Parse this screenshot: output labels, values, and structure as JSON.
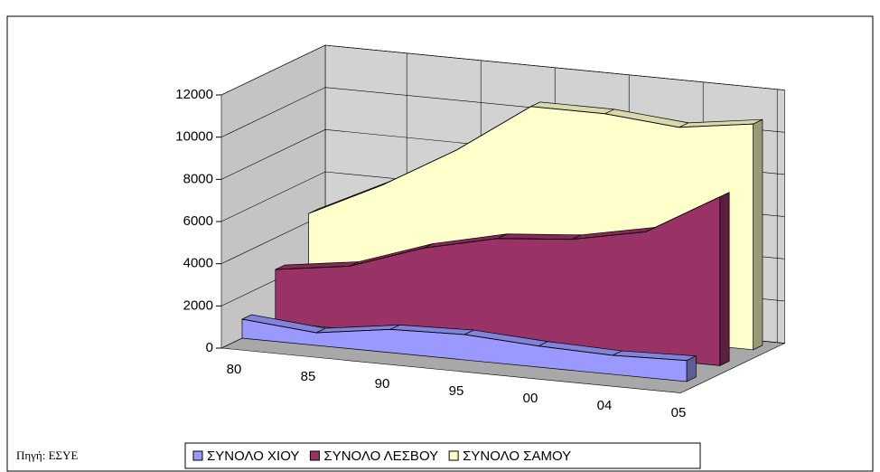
{
  "chart_data": {
    "type": "area3d",
    "categories": [
      "80",
      "85",
      "90",
      "95",
      "00",
      "04",
      "05"
    ],
    "series": [
      {
        "name": "ΣΥΝΟΛΟ ΧΙΟΥ",
        "color": "#9999ff",
        "values": [
          900,
          600,
          1100,
          1200,
          1000,
          900,
          1000
        ]
      },
      {
        "name": "ΣΥΝΟΛΟ ΛΕΣΒΟΥ",
        "color": "#993366",
        "values": [
          2500,
          3000,
          4200,
          5000,
          5300,
          6000,
          8000
        ]
      },
      {
        "name": "ΣΥΝΟΛΟ ΣΑΜΟΥ",
        "color": "#ffffcc",
        "values": [
          4400,
          6100,
          8100,
          10500,
          10500,
          10200,
          10700
        ]
      }
    ],
    "ylim": [
      0,
      12000
    ],
    "yticks": [
      0,
      2000,
      4000,
      6000,
      8000,
      10000,
      12000
    ],
    "grid": true,
    "source": "Πηγή: ΕΣΥΕ",
    "legend": "bottom"
  }
}
